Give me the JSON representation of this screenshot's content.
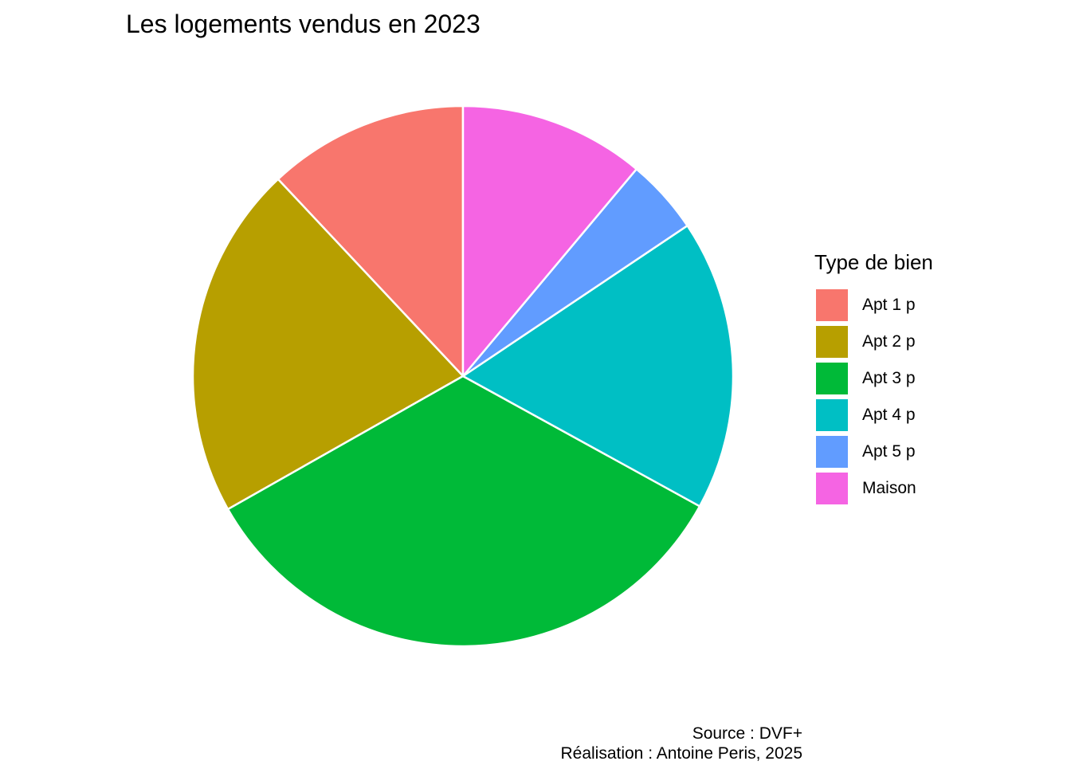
{
  "chart_data": {
    "type": "pie",
    "title": "Les logements vendus en 2023",
    "legend_title": "Type de bien",
    "legend_position": "right",
    "start": "top",
    "direction": "counterclockwise",
    "slices": [
      {
        "label": "Apt 1 p",
        "value": 12.0,
        "color": "#F8766D"
      },
      {
        "label": "Apt 2 p",
        "value": 21.2,
        "color": "#B79F00"
      },
      {
        "label": "Apt 3 p",
        "value": 33.8,
        "color": "#00BA38"
      },
      {
        "label": "Apt 4 p",
        "value": 17.4,
        "color": "#00BFC4"
      },
      {
        "label": "Apt 5 p",
        "value": 4.5,
        "color": "#619CFF"
      },
      {
        "label": "Maison",
        "value": 11.1,
        "color": "#F564E3"
      }
    ],
    "border_color": "#FFFFFF"
  },
  "caption": {
    "source": "Source : DVF+",
    "author": "Réalisation : Antoine Peris, 2025"
  }
}
